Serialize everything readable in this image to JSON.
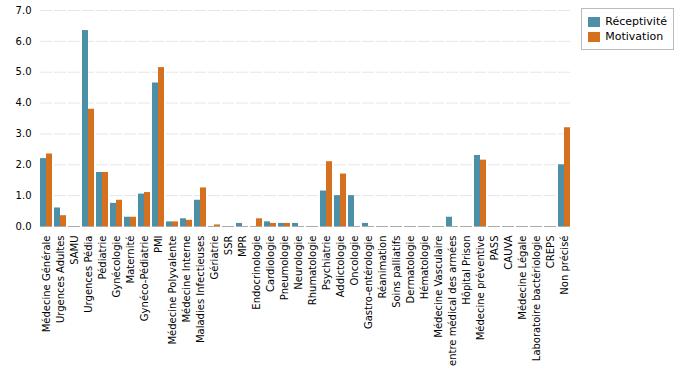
{
  "chart_data": {
    "type": "bar",
    "categories": [
      "Médecine Générale",
      "Urgences Adultes",
      "SAMU",
      "Urgences Pédia",
      "Pédiatrie",
      "Gynécologie",
      "Maternité",
      "Gynéco-Pédiatrie",
      "PMI",
      "Médecine Polyvalente",
      "Médecine Interne",
      "Maladies Infectieuses",
      "Gériatrie",
      "SSR",
      "MPR",
      "Endocrinologie",
      "Cardiologie",
      "Pneumologie",
      "Neurologie",
      "Rhumatologie",
      "Psychiatrie",
      "Addictologie",
      "Oncologie",
      "Gastro-entérologie",
      "Réanimation",
      "Soins palliatifs",
      "Dermatologie",
      "Hématologie",
      "Médecine Vasculaire",
      "Centre médical des armées",
      "Hôpital Prison",
      "Médecine préventive",
      "PASS",
      "CAUVA",
      "Médecine Légale",
      "Laboratoire bactériologie",
      "CREPS",
      "Non précisé"
    ],
    "series": [
      {
        "name": "Réceptivité",
        "color": "#4e8fa8",
        "values": [
          2.2,
          0.6,
          0.0,
          6.35,
          1.75,
          0.75,
          0.3,
          1.05,
          4.65,
          0.15,
          0.25,
          0.85,
          0.0,
          0.0,
          0.1,
          0.0,
          0.15,
          0.1,
          0.1,
          0.0,
          1.15,
          1.0,
          1.0,
          0.1,
          0.0,
          0.0,
          0.0,
          0.0,
          0.0,
          0.3,
          0.0,
          2.3,
          0.0,
          0.0,
          0.0,
          0.0,
          0.0,
          2.0
        ]
      },
      {
        "name": "Motivation",
        "color": "#d4701e",
        "values": [
          2.35,
          0.35,
          0.0,
          3.8,
          1.75,
          0.85,
          0.3,
          1.1,
          5.15,
          0.15,
          0.2,
          1.25,
          0.05,
          0.0,
          0.0,
          0.25,
          0.1,
          0.1,
          0.0,
          0.0,
          2.1,
          1.7,
          0.0,
          0.0,
          0.0,
          0.0,
          0.0,
          0.0,
          0.0,
          0.0,
          0.0,
          2.15,
          0.0,
          0.0,
          0.0,
          0.0,
          0.0,
          3.2
        ]
      }
    ],
    "ylim": [
      0,
      7
    ],
    "yticks": [
      0,
      1,
      2,
      3,
      4,
      5,
      6,
      7
    ],
    "grid": true,
    "legend": "upper right"
  }
}
